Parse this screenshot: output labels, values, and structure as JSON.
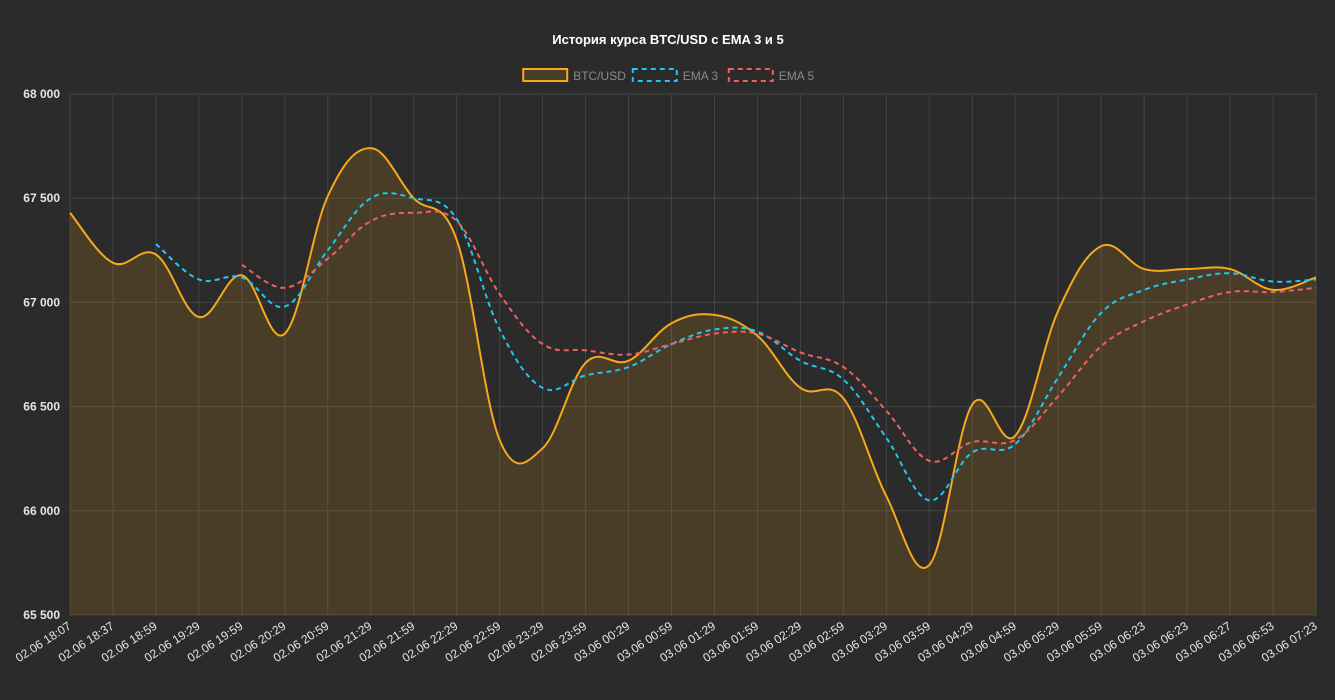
{
  "chart_data": {
    "type": "line",
    "title": "История курса BTC/USD с EMA 3 и 5",
    "xlabel": "",
    "ylabel": "",
    "ylim": [
      65500,
      68000
    ],
    "y_ticks": [
      "68 000",
      "67 500",
      "67 000",
      "66 500",
      "66 000",
      "65 500"
    ],
    "y_tick_values": [
      68000,
      67500,
      67000,
      66500,
      66000,
      65500
    ],
    "categories": [
      "02.06 18:07",
      "02.06 18:37",
      "02.06 18:59",
      "02.06 19:29",
      "02.06 19:59",
      "02.06 20:29",
      "02.06 20:59",
      "02.06 21:29",
      "02.06 21:59",
      "02.06 22:29",
      "02.06 22:59",
      "02.06 23:29",
      "02.06 23:59",
      "03.06 00:29",
      "03.06 00:59",
      "03.06 01:29",
      "03.06 01:59",
      "03.06 02:29",
      "03.06 02:59",
      "03.06 03:29",
      "03.06 03:59",
      "03.06 04:29",
      "03.06 04:59",
      "03.06 05:29",
      "03.06 05:59",
      "03.06 06:23",
      "03.06 06:23",
      "03.06 06:27",
      "03.06 06:53",
      "03.06 07:23"
    ],
    "grid": true,
    "legend_placement": "top",
    "series": [
      {
        "name": "BTC/USD",
        "color": "#f7a81b",
        "fill": "rgba(247,168,27,0.15)",
        "dash": false,
        "values": [
          67430,
          67190,
          67230,
          66930,
          67130,
          66850,
          67510,
          67740,
          67500,
          67300,
          66340,
          66300,
          66710,
          66720,
          66900,
          66940,
          66840,
          66590,
          66540,
          66070,
          65740,
          66510,
          66360,
          66960,
          67270,
          67160,
          67160,
          67160,
          67060,
          67120
        ]
      },
      {
        "name": "EMA 3",
        "color": "#1ec8f0",
        "dash": true,
        "values": [
          null,
          null,
          67280,
          67110,
          67120,
          66980,
          67250,
          67500,
          67500,
          67400,
          66870,
          66590,
          66650,
          66690,
          66800,
          66870,
          66860,
          66720,
          66630,
          66350,
          66050,
          66280,
          66320,
          66640,
          66950,
          67060,
          67110,
          67140,
          67100,
          67110
        ]
      },
      {
        "name": "EMA 5",
        "color": "#f06060",
        "dash": true,
        "values": [
          null,
          null,
          null,
          null,
          67180,
          67070,
          67210,
          67390,
          67430,
          67390,
          67040,
          66800,
          66770,
          66750,
          66800,
          66850,
          66850,
          66760,
          66690,
          66480,
          66240,
          66330,
          66340,
          66550,
          66790,
          66910,
          66990,
          67050,
          67050,
          67070
        ]
      }
    ]
  }
}
